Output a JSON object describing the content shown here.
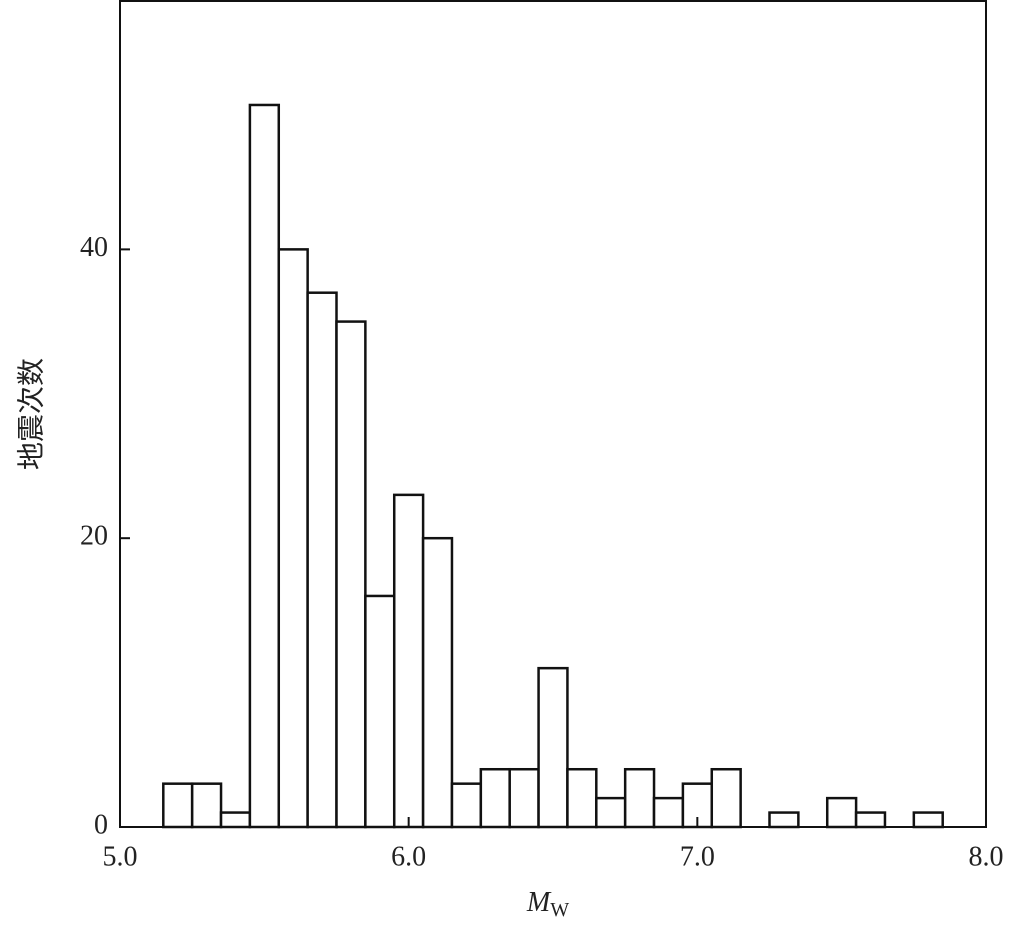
{
  "chart_data": {
    "type": "histogram",
    "xlabel": "M",
    "xlabel_sub": "W",
    "ylabel": "地震次数",
    "bins": [
      5.15,
      5.25,
      5.35,
      5.45,
      5.55,
      5.65,
      5.75,
      5.85,
      5.95,
      6.05,
      6.15,
      6.25,
      6.35,
      6.45,
      6.55,
      6.65,
      6.75,
      6.85,
      6.95,
      7.05,
      7.15,
      7.25,
      7.35,
      7.45,
      7.55,
      7.65,
      7.75,
      7.85
    ],
    "values": [
      3,
      3,
      1,
      50,
      40,
      37,
      35,
      16,
      23,
      20,
      3,
      4,
      4,
      11,
      4,
      2,
      4,
      2,
      3,
      4,
      0,
      1,
      0,
      2,
      1,
      0,
      1
    ],
    "color": "#ffffff",
    "edgecolor": "#111111",
    "xlim": [
      5.0,
      8.0
    ],
    "xticks": [
      {
        "value": 5.0,
        "label": "5.0"
      },
      {
        "value": 6.0,
        "label": "6.0"
      },
      {
        "value": 7.0,
        "label": "7.0"
      },
      {
        "value": 8.0,
        "label": "8.0"
      }
    ],
    "ylim": [
      0,
      57.2
    ],
    "yticks": [
      0,
      20,
      40
    ]
  }
}
